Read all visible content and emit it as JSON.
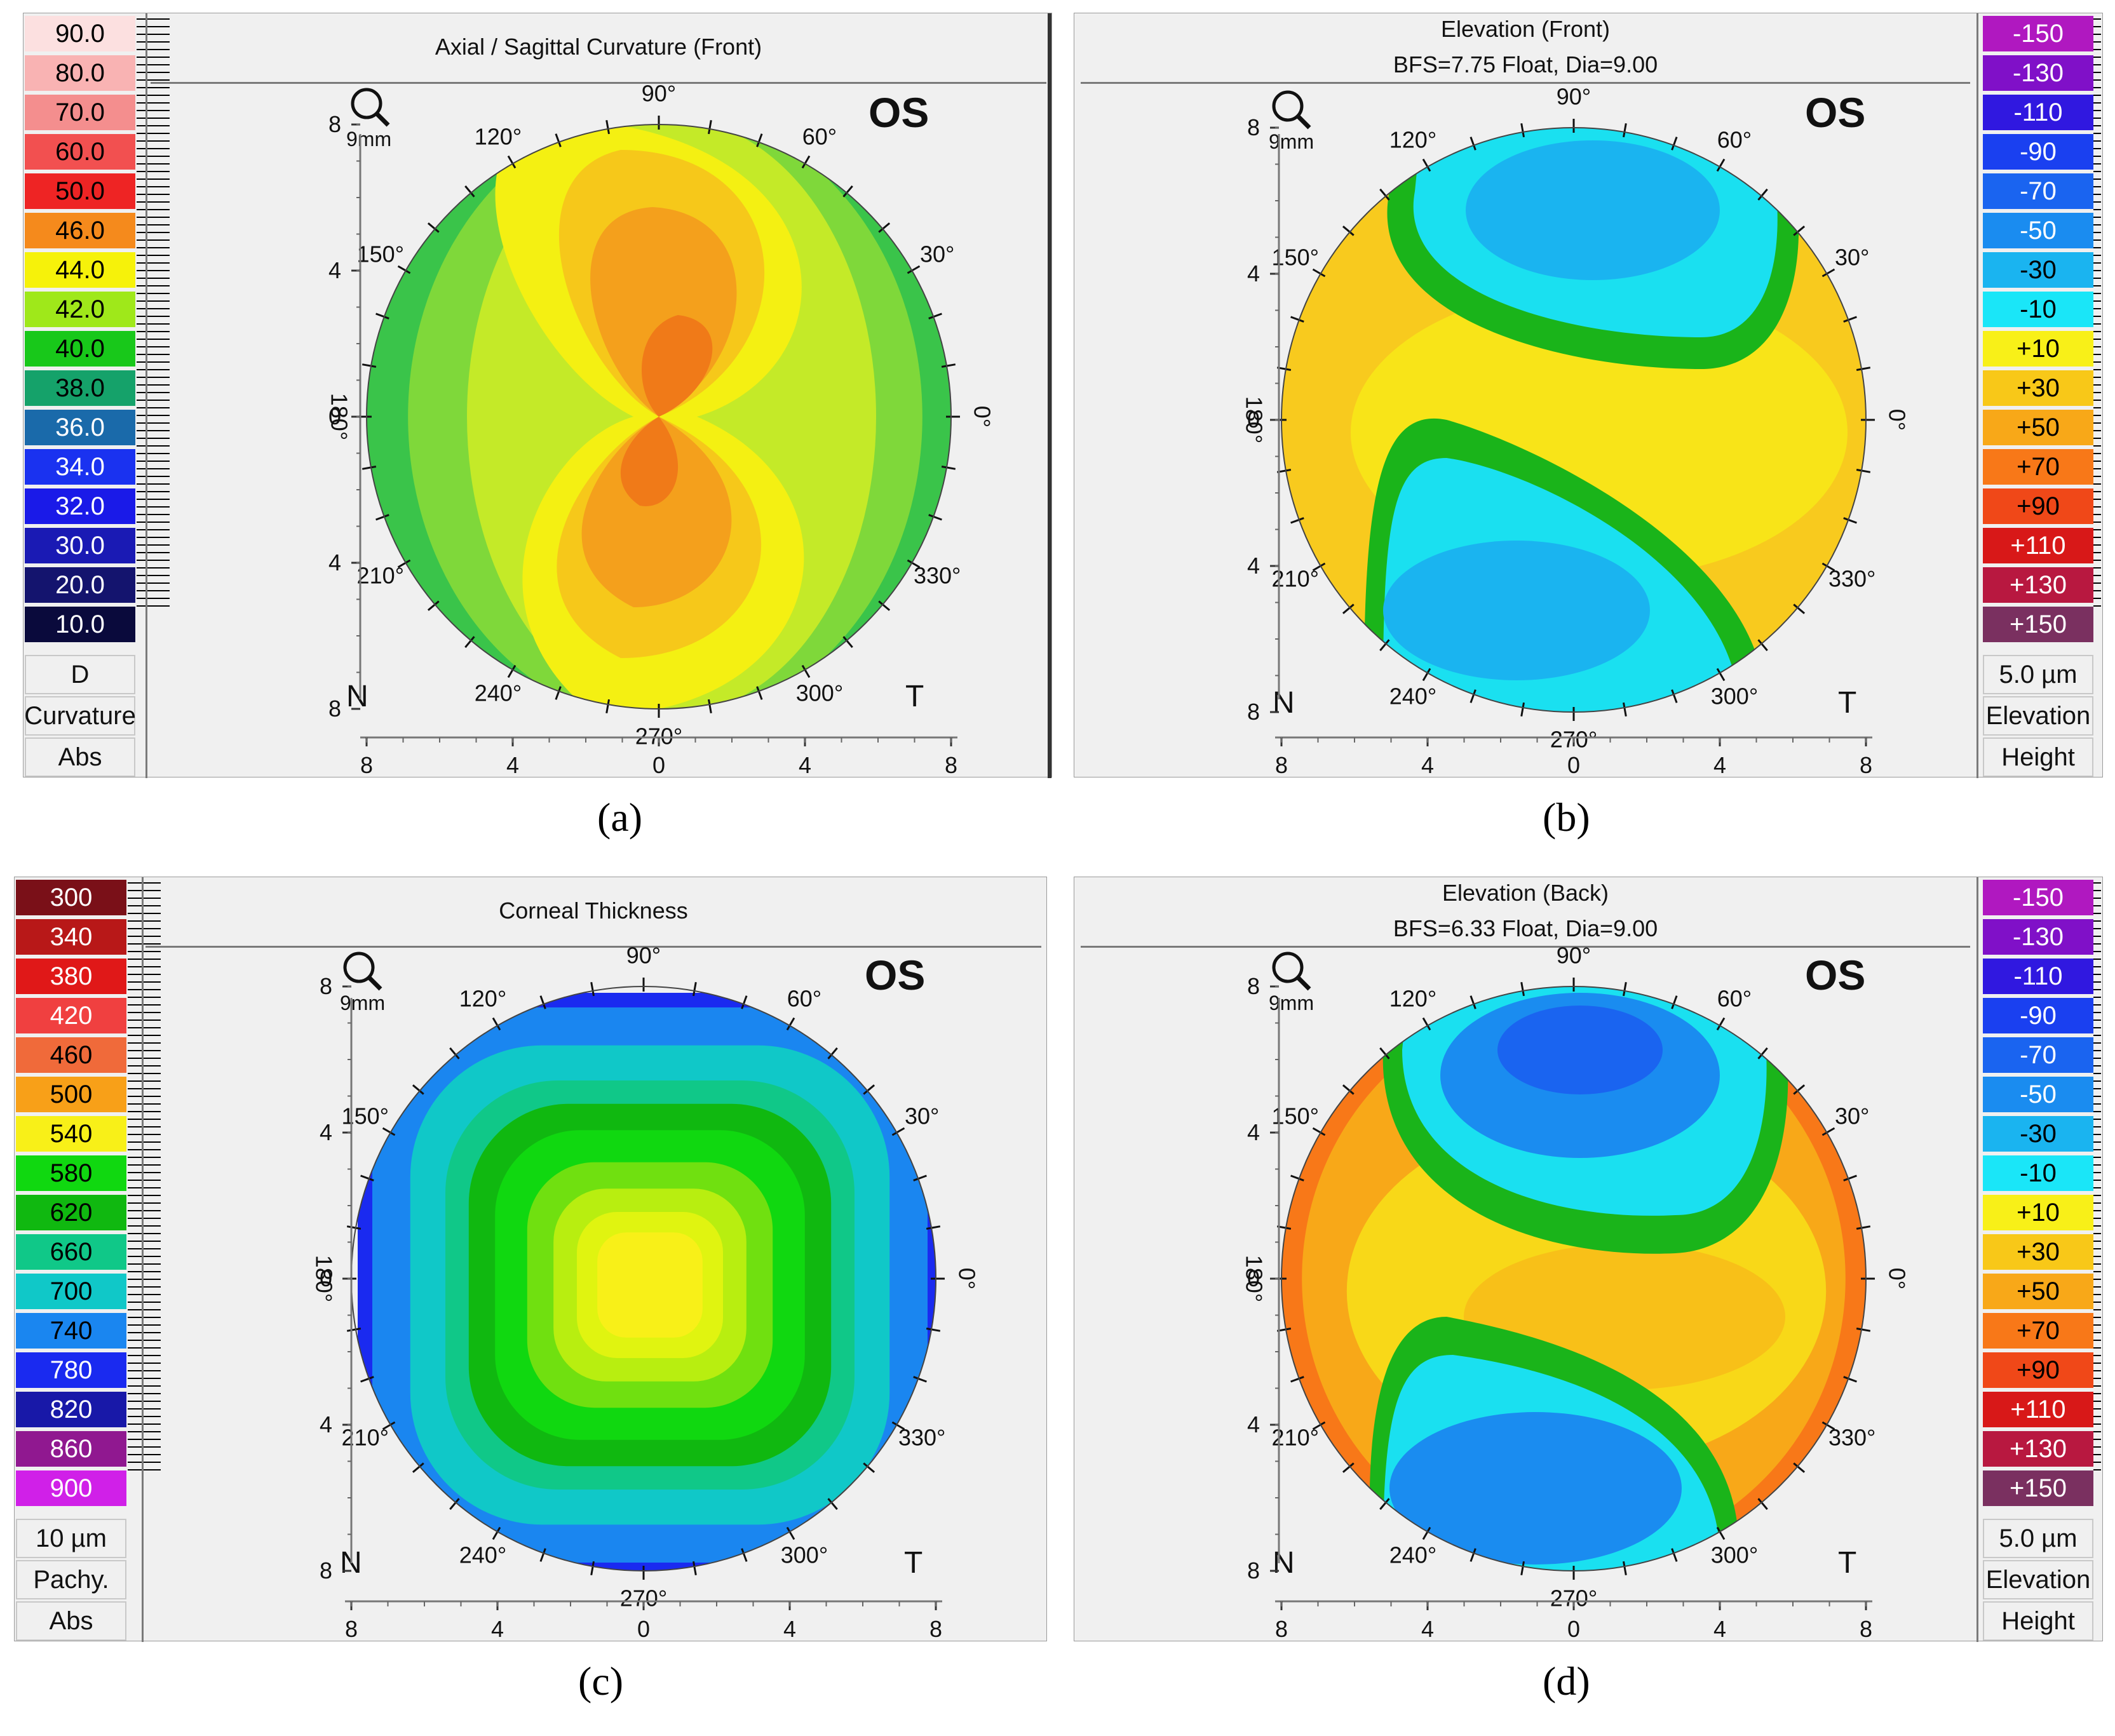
{
  "panels": {
    "a": {
      "title": "Axial / Sagittal Curvature (Front)",
      "subtitle": "",
      "eye": "OS",
      "zoom": "9mm",
      "nasal": "N",
      "temporal": "T",
      "caption": "(a)",
      "scale_labels": [
        "90.0",
        "80.0",
        "70.0",
        "60.0",
        "50.0",
        "46.0",
        "44.0",
        "42.0",
        "40.0",
        "38.0",
        "36.0",
        "34.0",
        "32.0",
        "30.0",
        "20.0",
        "10.0"
      ],
      "scale_colors": [
        "#fce0e0",
        "#f9b3b3",
        "#f48e8e",
        "#f25050",
        "#ee2424",
        "#f58a1c",
        "#f6f20a",
        "#9fe81a",
        "#18c81a",
        "#15a26a",
        "#1a6aaa",
        "#1a32f0",
        "#1a1ae8",
        "#1a1ab4",
        "#14146e",
        "#0a0a3c"
      ],
      "scale_text_colors": [
        "#000",
        "#000",
        "#000",
        "#000",
        "#000",
        "#000",
        "#000",
        "#000",
        "#000",
        "#000",
        "#fff",
        "#fff",
        "#fff",
        "#fff",
        "#fff",
        "#fff"
      ],
      "boxes": [
        "D",
        "Curvature",
        "Abs"
      ]
    },
    "b": {
      "title": "Elevation (Front)",
      "subtitle": "BFS=7.75 Float, Dia=9.00",
      "eye": "OS",
      "zoom": "9mm",
      "nasal": "N",
      "temporal": "T",
      "caption": "(b)",
      "scale_labels": [
        "-150",
        "-130",
        "-110",
        "-90",
        "-70",
        "-50",
        "-30",
        "-10",
        "+10",
        "+30",
        "+50",
        "+70",
        "+90",
        "+110",
        "+130",
        "+150"
      ],
      "scale_colors": [
        "#b018c0",
        "#8010c8",
        "#3018e0",
        "#1a40f0",
        "#1a64f0",
        "#1a8cf0",
        "#1ab4f0",
        "#1ae6f8",
        "#f8f018",
        "#f8c818",
        "#f8a818",
        "#f87818",
        "#f04818",
        "#d81818",
        "#b81840",
        "#7a3060"
      ],
      "scale_text_colors": [
        "#fff",
        "#fff",
        "#fff",
        "#fff",
        "#fff",
        "#fff",
        "#000",
        "#000",
        "#000",
        "#000",
        "#000",
        "#000",
        "#000",
        "#fff",
        "#fff",
        "#fff"
      ],
      "boxes": [
        "5.0 µm",
        "Elevation",
        "Height"
      ]
    },
    "c": {
      "title": "Corneal Thickness",
      "subtitle": "",
      "eye": "OS",
      "zoom": "9mm",
      "nasal": "N",
      "temporal": "T",
      "caption": "(c)",
      "scale_labels": [
        "300",
        "340",
        "380",
        "420",
        "460",
        "500",
        "540",
        "580",
        "620",
        "660",
        "700",
        "740",
        "780",
        "820",
        "860",
        "900"
      ],
      "scale_colors": [
        "#7a1018",
        "#b81818",
        "#e01818",
        "#f04040",
        "#f06a3a",
        "#f8a018",
        "#f8f018",
        "#10d810",
        "#10b810",
        "#10c888",
        "#10c8c8",
        "#1a86f0",
        "#1a2af0",
        "#1818a8",
        "#901890",
        "#d020e8"
      ],
      "scale_text_colors": [
        "#fff",
        "#fff",
        "#fff",
        "#fff",
        "#000",
        "#000",
        "#000",
        "#000",
        "#000",
        "#000",
        "#000",
        "#000",
        "#fff",
        "#fff",
        "#fff",
        "#fff"
      ],
      "boxes": [
        "10 µm",
        "Pachy.",
        "Abs"
      ]
    },
    "d": {
      "title": "Elevation (Back)",
      "subtitle": "BFS=6.33 Float, Dia=9.00",
      "eye": "OS",
      "zoom": "9mm",
      "nasal": "N",
      "temporal": "T",
      "caption": "(d)",
      "scale_labels": [
        "-150",
        "-130",
        "-110",
        "-90",
        "-70",
        "-50",
        "-30",
        "-10",
        "+10",
        "+30",
        "+50",
        "+70",
        "+90",
        "+110",
        "+130",
        "+150"
      ],
      "scale_colors": [
        "#b018c0",
        "#8010c8",
        "#3018e0",
        "#1a40f0",
        "#1a64f0",
        "#1a8cf0",
        "#1ab4f0",
        "#1ae6f8",
        "#f8f018",
        "#f8c818",
        "#f8a818",
        "#f87818",
        "#f04818",
        "#d81818",
        "#b81840",
        "#7a3060"
      ],
      "scale_text_colors": [
        "#fff",
        "#fff",
        "#fff",
        "#fff",
        "#fff",
        "#fff",
        "#000",
        "#000",
        "#000",
        "#000",
        "#000",
        "#000",
        "#000",
        "#fff",
        "#fff",
        "#fff"
      ],
      "boxes": [
        "5.0 µm",
        "Elevation",
        "Height"
      ]
    }
  },
  "axis_ticks": {
    "x": [
      "8",
      "4",
      "0",
      "4",
      "8"
    ],
    "y": [
      "8",
      "4",
      "0",
      "4",
      "8"
    ]
  },
  "angle_labels": [
    "90°",
    "60°",
    "30°",
    "0°",
    "330°",
    "300°",
    "270°",
    "240°",
    "210°",
    "180°",
    "150°",
    "120°"
  ]
}
